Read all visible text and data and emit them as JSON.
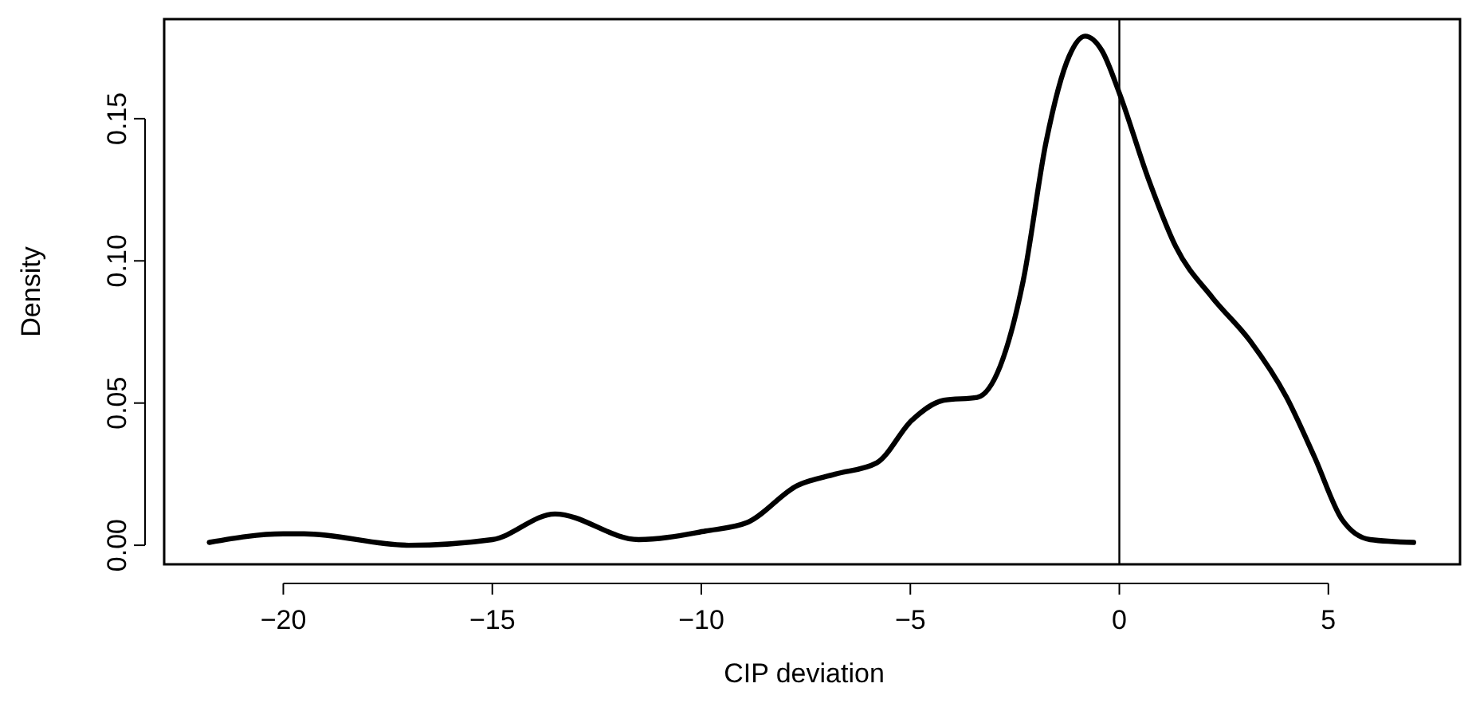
{
  "chart_data": {
    "type": "line",
    "xlabel": "CIP deviation",
    "ylabel": "Density",
    "x": [
      -21.77,
      -20,
      -19.5,
      -17,
      -15,
      -13.5,
      -11.5,
      -9.9,
      -8.9,
      -7.7,
      -6.8,
      -5.8,
      -4.96,
      -4.2,
      -3.4,
      -2.85,
      -2.3,
      -1.75,
      -1.2,
      -0.82,
      -0.42,
      0,
      0.69,
      1.35,
      2.23,
      3.12,
      4,
      4.67,
      5.33,
      6,
      7.04
    ],
    "series": [
      {
        "color": "#000000",
        "values": [
          0.001,
          0.004,
          0.004,
          0,
          0.002,
          0.011,
          0.002,
          0.005,
          0.008,
          0.021,
          0.025,
          0.029,
          0.044,
          0.051,
          0.052,
          0.063,
          0.093,
          0.142,
          0.172,
          0.179,
          0.174,
          0.159,
          0.129,
          0.105,
          0.087,
          0.072,
          0.052,
          0.031,
          0.009,
          0.002,
          0.001
        ]
      }
    ],
    "xlim": [
      -22.85,
      8.15
    ],
    "xticks": [
      -20,
      -15,
      -10,
      -5,
      0,
      5
    ],
    "ylim": [
      -0.0067,
      0.185
    ],
    "yticks": [
      {
        "value": 0,
        "label": "0.00"
      },
      {
        "value": 0.05,
        "label": "0.05"
      },
      {
        "value": 0.1,
        "label": "0.10"
      },
      {
        "value": 0.15,
        "label": "0.15"
      }
    ],
    "ref_lines": [
      {
        "axis": "x",
        "value": 0,
        "color": "#000000"
      }
    ],
    "marker": "none",
    "line_style": "solid"
  }
}
